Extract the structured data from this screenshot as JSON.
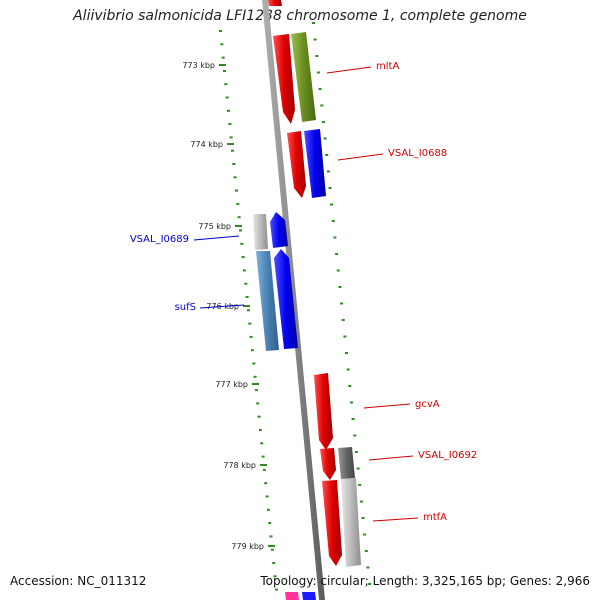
{
  "title": "Aliivibrio salmonicida LFI1238 chromosome 1, complete genome",
  "footer": {
    "accession": "Accession: NC_011312",
    "summary": "Topology: circular; Length: 3,325,165 bp; Genes: 2,966"
  },
  "colors": {
    "backbone": "#8a8a8a",
    "tick": "#2e8b22",
    "forward_gene": "#e00000",
    "label_red": "#cc0000",
    "label_blue": "#0000cc",
    "gene_blue": "#0000ee",
    "gene_olive": "#6b8e23",
    "gene_steel": "#4a82b4",
    "gene_grey": "#bbbbbb",
    "gene_darkgrey": "#666666"
  },
  "scale_ticks": [
    {
      "label": "773 kbp"
    },
    {
      "label": "774 kbp"
    },
    {
      "label": "775 kbp"
    },
    {
      "label": "776 kbp"
    },
    {
      "label": "777 kbp"
    },
    {
      "label": "778 kbp"
    },
    {
      "label": "779 kbp"
    }
  ],
  "gene_labels": [
    {
      "name": "mltA",
      "color": "red"
    },
    {
      "name": "VSAL_I0688",
      "color": "red"
    },
    {
      "name": "VSAL_I0689",
      "color": "blue"
    },
    {
      "name": "sufS",
      "color": "blue"
    },
    {
      "name": "gcvA",
      "color": "red"
    },
    {
      "name": "VSAL_I0692",
      "color": "red"
    },
    {
      "name": "mtfA",
      "color": "red"
    }
  ]
}
